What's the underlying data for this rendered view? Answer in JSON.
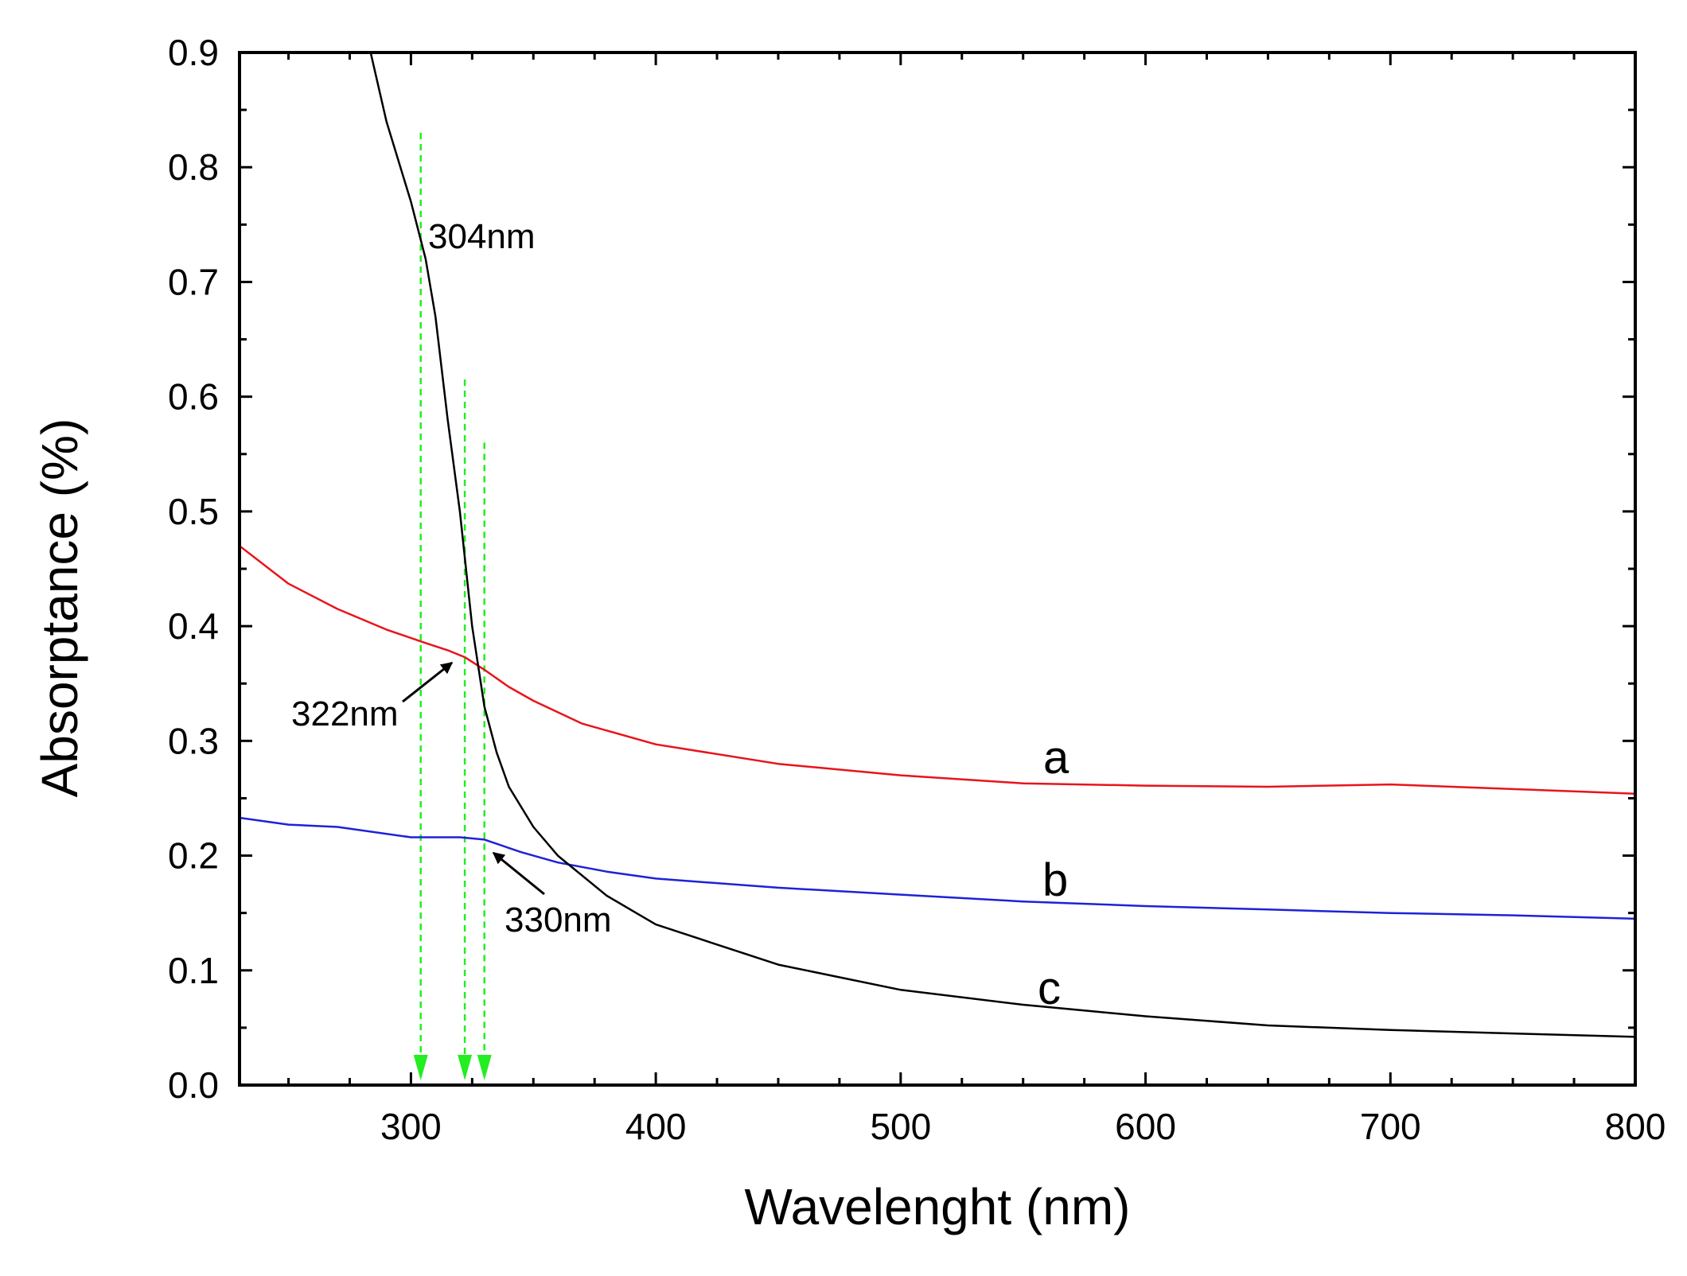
{
  "chart_data": {
    "type": "line",
    "xlabel": "Wavelenght (nm)",
    "ylabel": "Absorptance (%)",
    "xlim": [
      230,
      800
    ],
    "ylim": [
      0.0,
      0.9
    ],
    "x_ticks": [
      300,
      400,
      500,
      600,
      700,
      800
    ],
    "x_tick_labels": [
      "300",
      "400",
      "500",
      "600",
      "700",
      "800"
    ],
    "y_ticks": [
      0.0,
      0.1,
      0.2,
      0.3,
      0.4,
      0.5,
      0.6,
      0.7,
      0.8,
      0.9
    ],
    "y_tick_labels": [
      "0.0",
      "0.1",
      "0.2",
      "0.3",
      "0.4",
      "0.5",
      "0.6",
      "0.7",
      "0.8",
      "0.9"
    ],
    "x_minor_step": 25,
    "y_minor_step": 0.05,
    "grid": false,
    "series": [
      {
        "name": "a",
        "color": "#e8141b",
        "x": [
          230,
          250,
          270,
          290,
          305,
          315,
          322,
          330,
          340,
          350,
          370,
          400,
          450,
          500,
          550,
          600,
          650,
          700,
          750,
          800
        ],
        "y": [
          0.47,
          0.437,
          0.415,
          0.397,
          0.386,
          0.379,
          0.373,
          0.362,
          0.347,
          0.335,
          0.315,
          0.297,
          0.28,
          0.27,
          0.263,
          0.261,
          0.26,
          0.262,
          0.258,
          0.254
        ]
      },
      {
        "name": "b",
        "color": "#1e22d6",
        "x": [
          230,
          250,
          270,
          300,
          320,
          330,
          345,
          360,
          380,
          400,
          450,
          500,
          550,
          600,
          650,
          700,
          750,
          800
        ],
        "y": [
          0.233,
          0.227,
          0.225,
          0.216,
          0.216,
          0.214,
          0.203,
          0.194,
          0.186,
          0.18,
          0.172,
          0.166,
          0.16,
          0.156,
          0.153,
          0.15,
          0.148,
          0.145
        ]
      },
      {
        "name": "c",
        "color": "#000000",
        "x": [
          283,
          290,
          300,
          306,
          310,
          315,
          320,
          325,
          330,
          335,
          340,
          350,
          360,
          380,
          400,
          450,
          500,
          550,
          600,
          650,
          700,
          750,
          800
        ],
        "y": [
          0.905,
          0.84,
          0.77,
          0.72,
          0.67,
          0.58,
          0.5,
          0.4,
          0.33,
          0.29,
          0.26,
          0.225,
          0.2,
          0.165,
          0.14,
          0.105,
          0.083,
          0.07,
          0.06,
          0.052,
          0.048,
          0.045,
          0.042
        ]
      }
    ],
    "annotations": [
      {
        "text": "304nm",
        "x": 304
      },
      {
        "text": "322nm",
        "x": 322
      },
      {
        "text": "330nm",
        "x": 330
      }
    ],
    "guide_color": "#22ee22"
  }
}
